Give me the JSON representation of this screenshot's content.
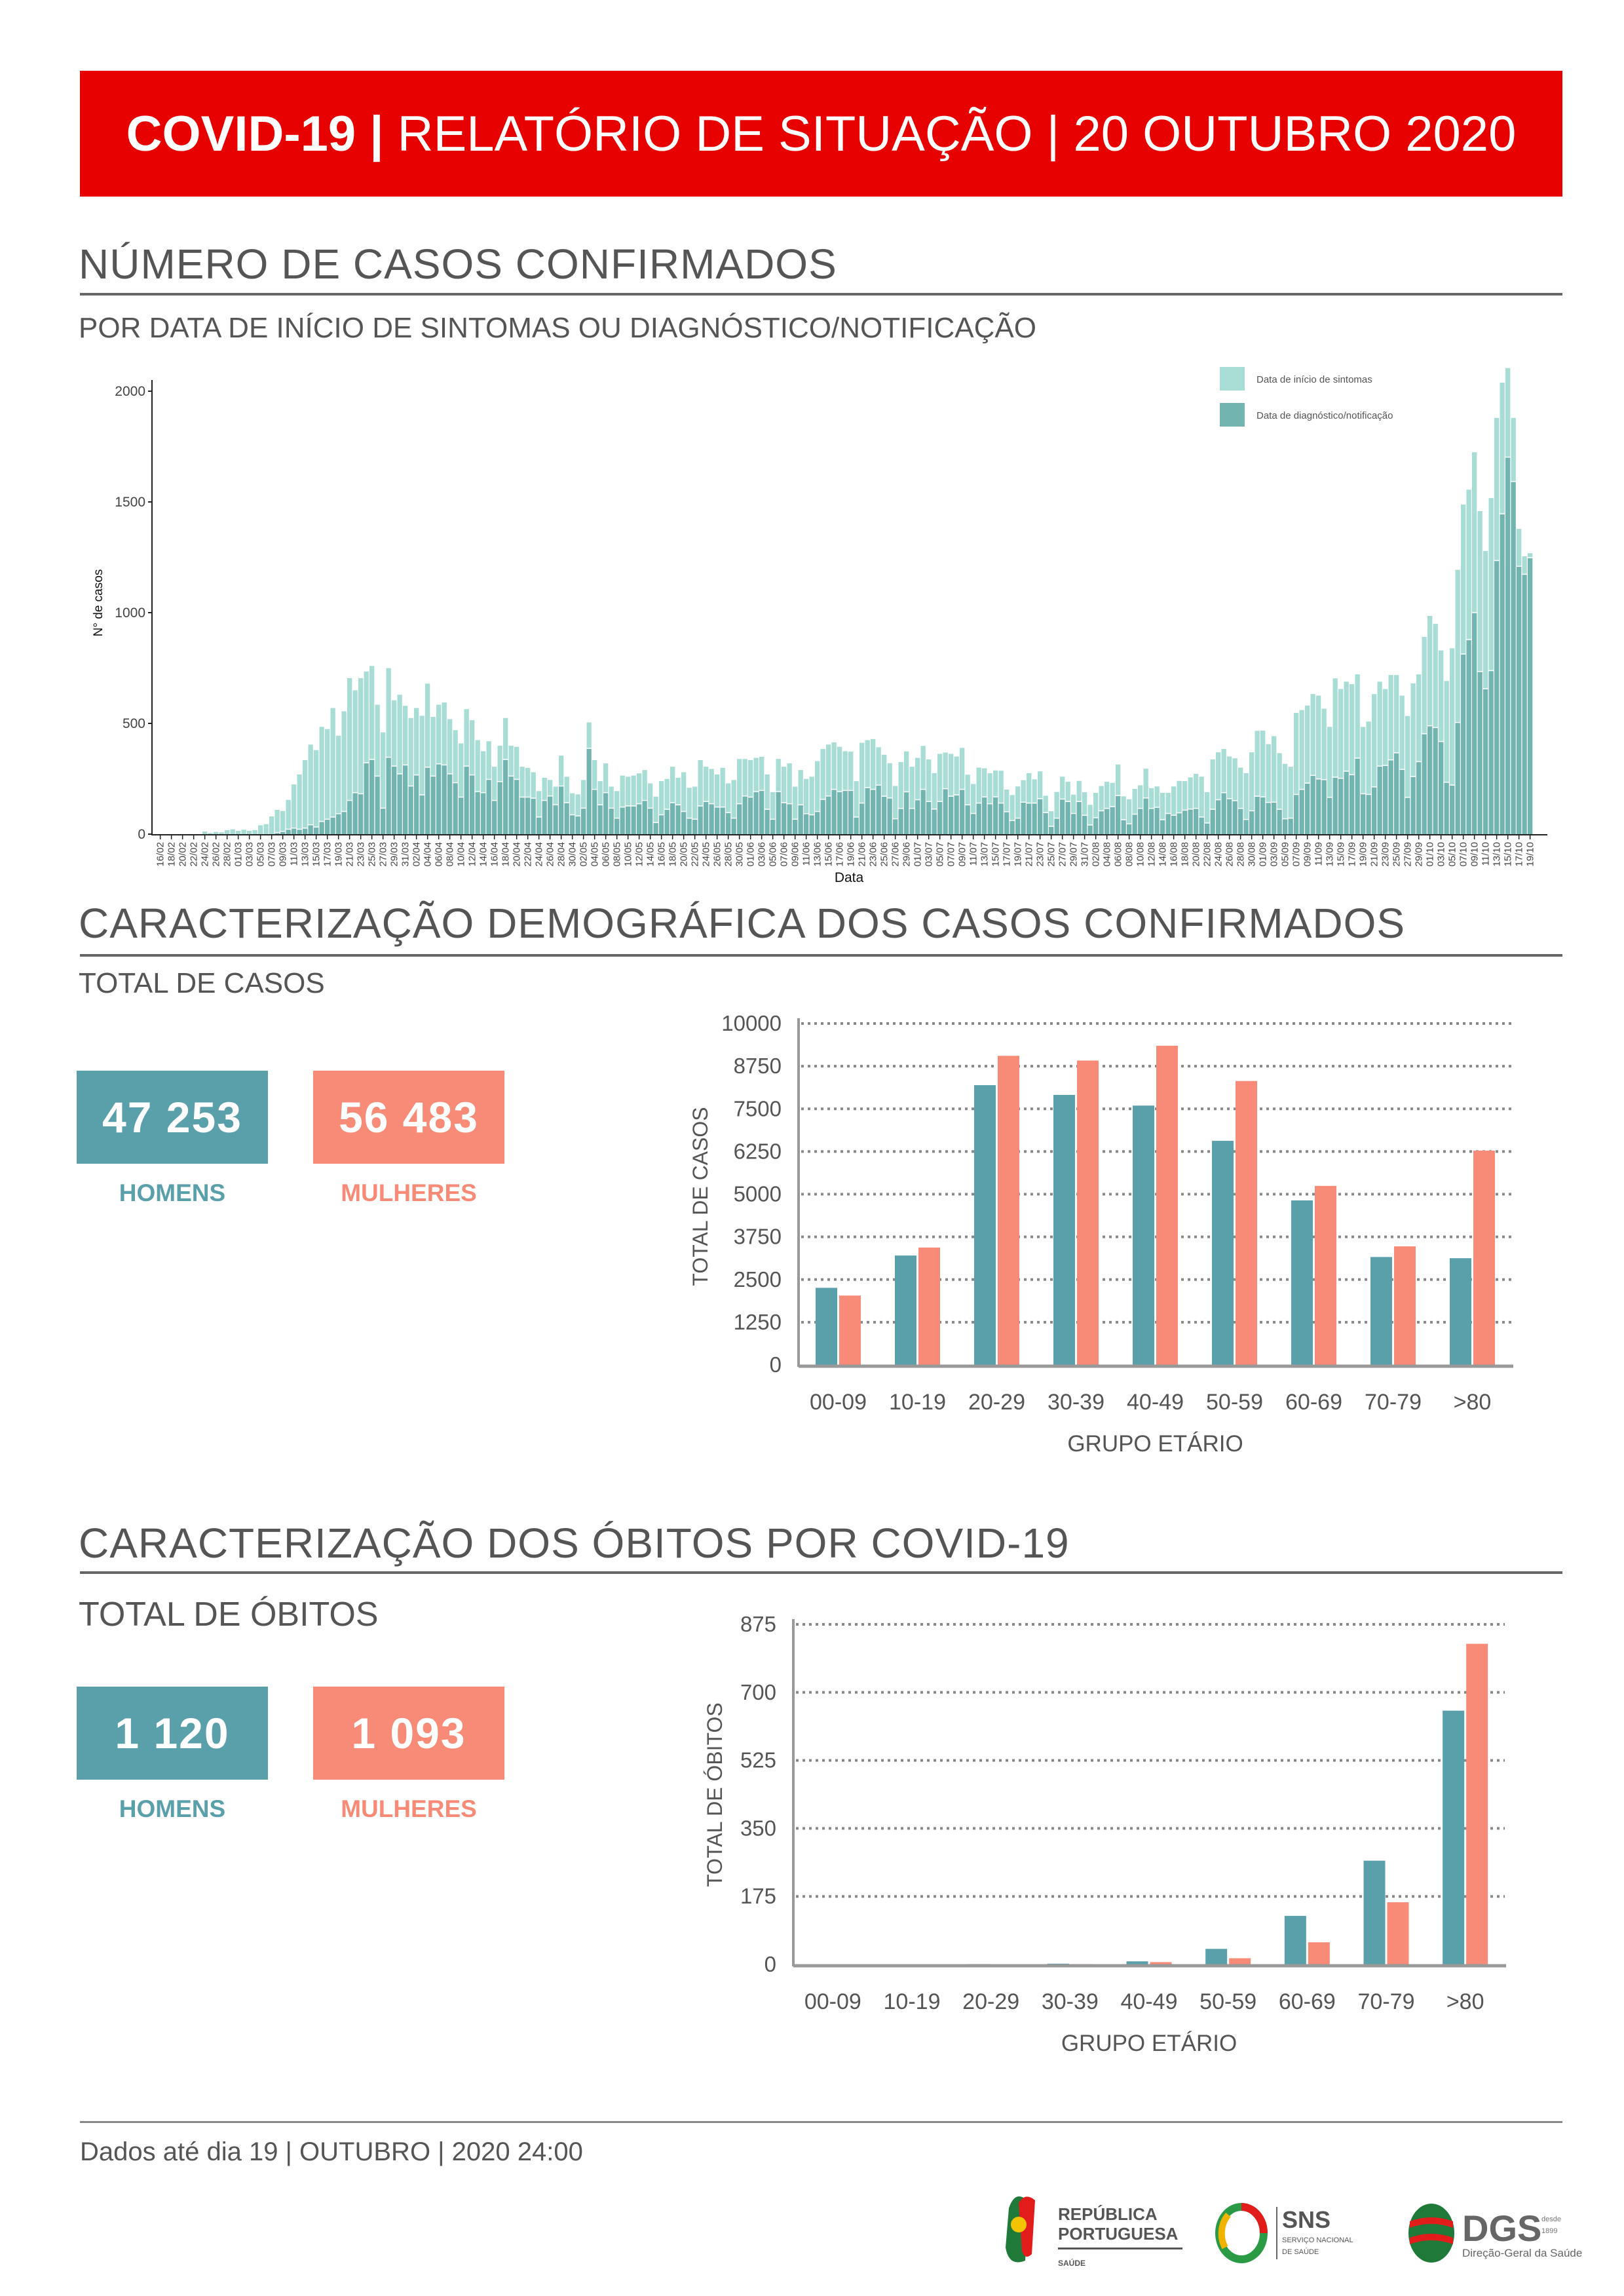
{
  "header": {
    "title_bold": "COVID-19 |",
    "title_rest": " RELATÓRIO DE SITUAÇÃO | 20 OUTUBRO 2020",
    "bg_color": "#e60000"
  },
  "section1": {
    "title": "NÚMERO DE CASOS CONFIRMADOS",
    "subtitle": "POR DATA DE INÍCIO DE SINTOMAS OU DIAGNÓSTICO/NOTIFICAÇÃO"
  },
  "section2": {
    "title": "CARACTERIZAÇÃO DEMOGRÁFICA DOS CASOS CONFIRMADOS",
    "subtitle": "TOTAL DE CASOS",
    "men_value": "47 253",
    "men_label": "HOMENS",
    "women_value": "56 483",
    "women_label": "MULHERES"
  },
  "section3": {
    "title": "CARACTERIZAÇÃO DOS ÓBITOS POR COVID-19",
    "subtitle": "TOTAL DE ÓBITOS",
    "men_value": "1 120",
    "men_label": "HOMENS",
    "women_value": "1 093",
    "women_label": "MULHERES"
  },
  "footer": {
    "text": "Dados até dia 19 | OUTUBRO | 2020 24:00"
  },
  "logos": {
    "republica": [
      "REPÚBLICA",
      "PORTUGUESA",
      "SAÚDE"
    ],
    "sns": [
      "SNS",
      "SERVIÇO NACIONAL",
      "DE SAÚDE"
    ],
    "dgs": [
      "DGS",
      "desde",
      "1899",
      "Direção-Geral da Saúde"
    ]
  },
  "colors": {
    "men": "#5aa0aa",
    "women": "#f88b78",
    "sintomas": "#a8ddd6",
    "diagnostico": "#72b5b0"
  },
  "chart_data": [
    {
      "type": "bar",
      "stacked": true,
      "xlabel": "Data",
      "ylabel": "N° de casos",
      "ylim": [
        0,
        2100
      ],
      "yticks": [
        0,
        500,
        1000,
        1500,
        2000
      ],
      "grid": false,
      "legend": "top-right",
      "x_tick_labels": [
        "16/02",
        "18/02",
        "20/02",
        "22/02",
        "24/02",
        "26/02",
        "28/02",
        "01/03",
        "03/03",
        "05/03",
        "07/03",
        "09/03",
        "11/03",
        "13/03",
        "15/03",
        "17/03",
        "19/03",
        "21/03",
        "23/03",
        "25/03",
        "27/03",
        "29/03",
        "31/03",
        "02/04",
        "04/04",
        "06/04",
        "08/04",
        "10/04",
        "12/04",
        "14/04",
        "16/04",
        "18/04",
        "20/04",
        "22/04",
        "24/04",
        "26/04",
        "28/04",
        "30/04",
        "02/05",
        "04/05",
        "06/05",
        "08/05",
        "10/05",
        "12/05",
        "14/05",
        "16/05",
        "18/05",
        "20/05",
        "22/05",
        "24/05",
        "26/05",
        "28/05",
        "30/05",
        "01/06",
        "03/06",
        "05/06",
        "07/06",
        "09/06",
        "11/06",
        "13/06",
        "15/06",
        "17/06",
        "19/06",
        "21/06",
        "23/06",
        "25/06",
        "27/06",
        "29/06",
        "01/07",
        "03/07",
        "05/07",
        "07/07",
        "09/07",
        "11/07",
        "13/07",
        "15/07",
        "17/07",
        "19/07",
        "21/07",
        "23/07",
        "25/07",
        "27/07",
        "29/07",
        "31/07",
        "02/08",
        "04/08",
        "06/08",
        "08/08",
        "10/08",
        "12/08",
        "14/08",
        "16/08",
        "18/08",
        "20/08",
        "22/08",
        "24/08",
        "26/08",
        "28/08",
        "30/08",
        "01/09",
        "03/09",
        "05/09",
        "07/09",
        "09/09",
        "11/09",
        "13/09",
        "15/09",
        "17/09",
        "19/09",
        "21/09",
        "23/09",
        "25/09",
        "27/09",
        "29/09",
        "01/10",
        "03/10",
        "05/10",
        "07/10",
        "09/10",
        "11/10",
        "13/10",
        "15/10",
        "17/10",
        "19/10"
      ],
      "first_date": "16/02",
      "last_date": "19/10",
      "series": [
        {
          "name": "Data de diagnóstico/notificação",
          "values": [
            0,
            0,
            0,
            0,
            0,
            0,
            0,
            0,
            0,
            0,
            0,
            0,
            0,
            0,
            0,
            0,
            0,
            0,
            0,
            0,
            0,
            5,
            10,
            20,
            25,
            20,
            25,
            40,
            30,
            55,
            65,
            75,
            90,
            100,
            150,
            185,
            180,
            320,
            335,
            260,
            115,
            345,
            305,
            270,
            310,
            215,
            265,
            175,
            300,
            260,
            315,
            310,
            270,
            230,
            165,
            305,
            265,
            190,
            185,
            245,
            150,
            235,
            335,
            260,
            245,
            165,
            165,
            160,
            75,
            150,
            170,
            130,
            215,
            140,
            85,
            80,
            115,
            385,
            200,
            130,
            185,
            115,
            70,
            120,
            125,
            125,
            135,
            150,
            115,
            50,
            85,
            110,
            140,
            130,
            100,
            70,
            65,
            125,
            145,
            135,
            120,
            120,
            95,
            70,
            135,
            170,
            165,
            190,
            195,
            110,
            65,
            190,
            140,
            135,
            65,
            130,
            90,
            85,
            100,
            155,
            170,
            200,
            190,
            195,
            195,
            75,
            138,
            208,
            200,
            219,
            169,
            161,
            67,
            114,
            189,
            114,
            153,
            200,
            145,
            111,
            145,
            203,
            169,
            175,
            200,
            130,
            91,
            138,
            166,
            135,
            166,
            138,
            99,
            59,
            70,
            142,
            138,
            138,
            158,
            95,
            33,
            70,
            156,
            145,
            91,
            145,
            83,
            39,
            72,
            103,
            114,
            122,
            172,
            63,
            44,
            88,
            114,
            161,
            114,
            119,
            63,
            91,
            83,
            94,
            106,
            111,
            114,
            75,
            48,
            110,
            153,
            185,
            158,
            149,
            114,
            64,
            103,
            169,
            166,
            141,
            142,
            110,
            67,
            70,
            177,
            200,
            228,
            263,
            247,
            244,
            164,
            255,
            250,
            282,
            266,
            341,
            180,
            177,
            211,
            305,
            308,
            333,
            365,
            290,
            164,
            258,
            325,
            451,
            487,
            479,
            416,
            232,
            219,
            502,
            811,
            876,
            998,
            732,
            654,
            736,
            1233,
            1444,
            1700,
            1590,
            1207,
            1171,
            1246
          ]
        },
        {
          "name": "Data de início de sintomas",
          "values": [
            0,
            0,
            0,
            0,
            0,
            0,
            0,
            0,
            12,
            5,
            10,
            8,
            18,
            22,
            15,
            20,
            15,
            18,
            40,
            45,
            80,
            100,
            90,
            130,
            195,
            245,
            305,
            360,
            345,
            425,
            405,
            490,
            350,
            450,
            550,
            460,
            520,
            410,
            420,
            320,
            340,
            400,
            295,
            355,
            265,
            305,
            300,
            355,
            375,
            265,
            265,
            280,
            245,
            235,
            240,
            255,
            245,
            230,
            185,
            170,
            150,
            160,
            185,
            135,
            145,
            135,
            130,
            115,
            115,
            100,
            70,
            80,
            135,
            115,
            95,
            95,
            125,
            115,
            130,
            105,
            130,
            95,
            120,
            140,
            130,
            135,
            135,
            135,
            110,
            115,
            150,
            135,
            160,
            120,
            175,
            135,
            145,
            205,
            155,
            155,
            145,
            175,
            130,
            170,
            200,
            165,
            165,
            150,
            150,
            155,
            120,
            145,
            160,
            180,
            145,
            155,
            155,
            170,
            225,
            225,
            230,
            210,
            200,
            175,
            173,
            160,
            270,
            212,
            225,
            169,
            185,
            155,
            146,
            207,
            180,
            186,
            187,
            194,
            188,
            160,
            213,
            161,
            189,
            171,
            185,
            134,
            131,
            158,
            127,
            136,
            117,
            144,
            98,
            113,
            141,
            97,
            133,
            105,
            121,
            74,
            66,
            116,
            99,
            87,
            83,
            91,
            102,
            89,
            110,
            110,
            118,
            105,
            138,
            103,
            109,
            112,
            102,
            130,
            89,
            92,
            119,
            91,
            128,
            142,
            129,
            141,
            154,
            180,
            137,
            223,
            212,
            195,
            188,
            189,
            182,
            207,
            262,
            293,
            297,
            261,
            296,
            251,
            246,
            230,
            366,
            356,
            348,
            365,
            374,
            318,
            316,
            444,
            401,
            402,
            407,
            376,
            300,
            327,
            417,
            379,
            343,
            381,
            349,
            331,
            365,
            418,
            392,
            435,
            494,
            466,
            409,
            455,
            616,
            687,
            673,
            675,
            722,
            722,
            620,
            777,
            642,
            590,
            400,
            285,
            167,
            79,
            18
          ]
        }
      ]
    },
    {
      "type": "bar",
      "xlabel": "GRUPO ETÁRIO",
      "ylabel": "TOTAL DE CASOS",
      "ylim": [
        0,
        10000
      ],
      "yticks": [
        0,
        1250,
        2500,
        3750,
        5000,
        6250,
        7500,
        8750,
        10000
      ],
      "grid": true,
      "categories": [
        "00-09",
        "10-19",
        "20-29",
        "30-39",
        "40-49",
        "50-59",
        "60-69",
        "70-79",
        ">80"
      ],
      "series": [
        {
          "key": "men",
          "values": [
            2257,
            3203,
            8194,
            7908,
            7595,
            6563,
            4818,
            3160,
            3125
          ]
        },
        {
          "key": "women",
          "values": [
            2031,
            3438,
            9054,
            8915,
            9349,
            8316,
            5243,
            3472,
            6276
          ]
        }
      ]
    },
    {
      "type": "bar",
      "xlabel": "GRUPO ETÁRIO",
      "ylabel": "TOTAL DE ÓBITOS",
      "ylim": [
        0,
        875
      ],
      "yticks": [
        0,
        175,
        350,
        525,
        700,
        875
      ],
      "grid": true,
      "categories": [
        "00-09",
        "10-19",
        "20-29",
        "30-39",
        "40-49",
        "50-59",
        "60-69",
        "70-79",
        ">80"
      ],
      "series": [
        {
          "key": "men",
          "values": [
            0,
            0,
            1,
            2,
            8,
            40,
            125,
            267,
            653
          ]
        },
        {
          "key": "women",
          "values": [
            0,
            0,
            0,
            1,
            6,
            16,
            57,
            160,
            825
          ]
        }
      ]
    }
  ]
}
